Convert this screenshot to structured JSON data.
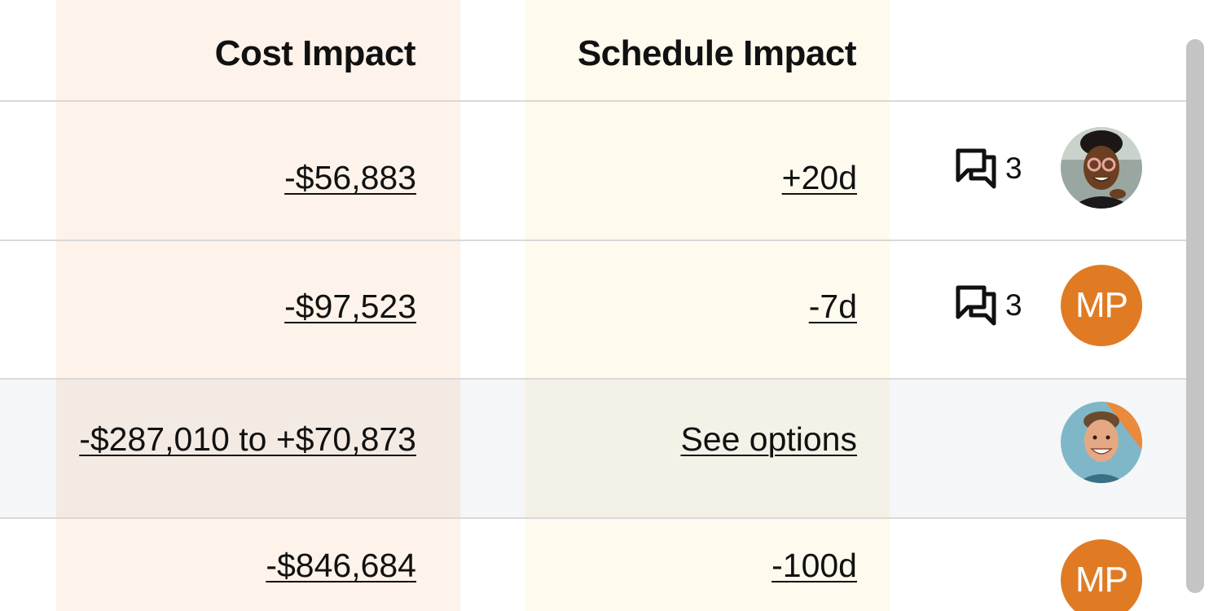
{
  "columns": {
    "cost_impact": "Cost Impact",
    "schedule_impact": "Schedule Impact"
  },
  "rows": [
    {
      "cost": "-$56,883",
      "schedule": "+20d",
      "comments": "3",
      "avatar": {
        "type": "photo",
        "icon": "person-photo-woman-glasses"
      }
    },
    {
      "cost": "-$97,523",
      "schedule": "-7d",
      "comments": "3",
      "avatar": {
        "type": "initials",
        "initials": "MP",
        "color": "#e07b24"
      }
    },
    {
      "cost": "-$287,010 to +$70,873",
      "schedule": "See options",
      "avatar": {
        "type": "photo",
        "icon": "person-photo-man-smiling"
      }
    },
    {
      "cost": "-$846,684",
      "schedule": "-100d",
      "avatar": {
        "type": "initials",
        "initials": "MP",
        "color": "#e07b24"
      }
    }
  ],
  "icons": {
    "comment": "comment-bubbles-icon"
  },
  "colors": {
    "cost_column_bg": "#fdf3ea",
    "schedule_column_bg": "#fefaee",
    "avatar_orange": "#e07b24",
    "divider": "#d9d9d9",
    "scrollbar": "#c4c4c4"
  }
}
